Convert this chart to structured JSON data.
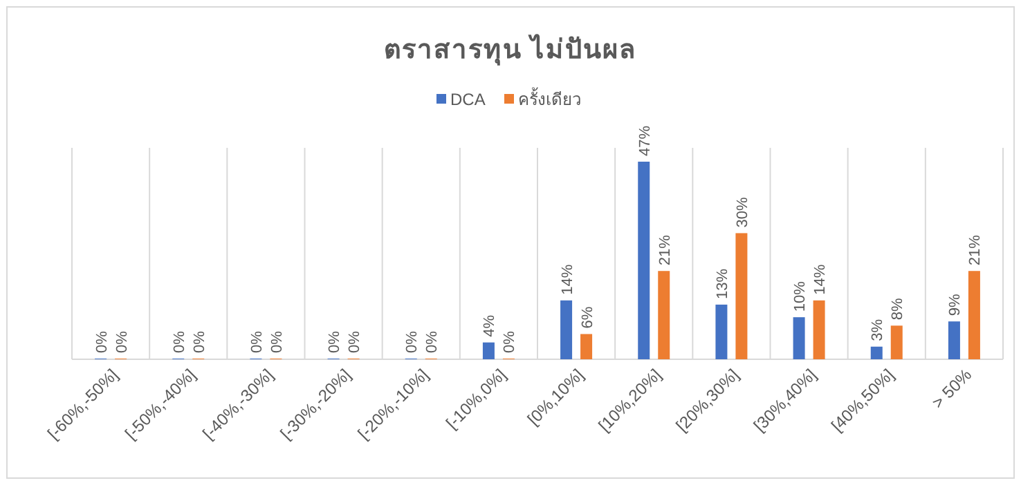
{
  "chart_data": {
    "type": "bar",
    "title": "ตราสารทุน ไม่ปันผล",
    "categories": [
      "[-60%,-50%]",
      "[-50%,-40%]",
      "[-40%,-30%]",
      "[-30%,-20%]",
      "[-20%,-10%]",
      "[-10%,0%]",
      "[0%,10%]",
      "[10%,20%]",
      "[20%,30%]",
      "[30%,40%]",
      "[40%,50%]",
      "> 50%"
    ],
    "series": [
      {
        "name": "DCA",
        "color": "#4472c4",
        "values": [
          0,
          0,
          0,
          0,
          0,
          4,
          14,
          47,
          13,
          10,
          3,
          9
        ],
        "value_labels": [
          "0%",
          "0%",
          "0%",
          "0%",
          "0%",
          "4%",
          "14%",
          "47%",
          "13%",
          "10%",
          "3%",
          "9%"
        ]
      },
      {
        "name": "ครั้งเดียว",
        "color": "#ed7d31",
        "values": [
          0,
          0,
          0,
          0,
          0,
          0,
          6,
          21,
          30,
          14,
          8,
          21
        ],
        "value_labels": [
          "0%",
          "0%",
          "0%",
          "0%",
          "0%",
          "0%",
          "6%",
          "21%",
          "30%",
          "14%",
          "8%",
          "21%"
        ]
      }
    ],
    "grid": "x",
    "legend": "top"
  }
}
